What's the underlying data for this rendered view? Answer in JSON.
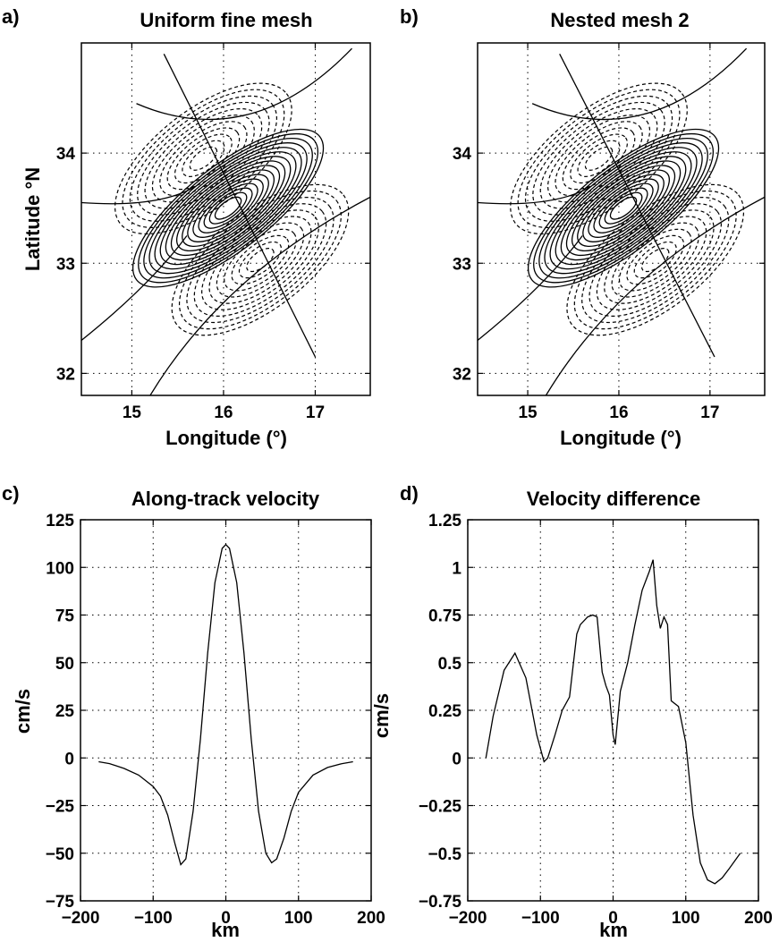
{
  "colors": {
    "line": "#000000",
    "background": "#ffffff"
  },
  "chart_data": [
    {
      "panel": "a)",
      "type": "contour",
      "title": "Uniform fine mesh",
      "xlabel": "Longitude (°)",
      "ylabel": "Latitude °N",
      "xlim": [
        14.45,
        17.6
      ],
      "ylim": [
        31.8,
        35.0
      ],
      "xticks": [
        15,
        16,
        17
      ],
      "yticks": [
        32,
        33,
        34
      ],
      "xtick_labels": [
        "15",
        "16",
        "17"
      ],
      "ytick_labels": [
        "32",
        "33",
        "34"
      ],
      "grid": true,
      "center": [
        16.05,
        33.5
      ],
      "track": [
        [
          15.35,
          34.9
        ],
        [
          17.0,
          32.15
        ]
      ],
      "solid_levels": 16,
      "dashed_levels": 11,
      "lobes": [
        [
          15.78,
          33.95
        ],
        [
          16.4,
          33.03
        ]
      ]
    },
    {
      "panel": "b)",
      "type": "contour",
      "title": "Nested mesh 2",
      "xlabel": "Longitude (°)",
      "ylabel": "",
      "xlim": [
        14.45,
        17.6
      ],
      "ylim": [
        31.8,
        35.0
      ],
      "xticks": [
        15,
        16,
        17
      ],
      "yticks": [
        32,
        33,
        34
      ],
      "xtick_labels": [
        "15",
        "16",
        "17"
      ],
      "ytick_labels": [
        "32",
        "33",
        "34"
      ],
      "grid": true,
      "center": [
        16.05,
        33.5
      ],
      "track": [
        [
          15.35,
          34.9
        ],
        [
          17.05,
          32.15
        ]
      ],
      "solid_levels": 16,
      "dashed_levels": 11,
      "lobes": [
        [
          15.78,
          33.95
        ],
        [
          16.4,
          33.03
        ]
      ]
    },
    {
      "panel": "c)",
      "type": "line",
      "title": "Along-track velocity",
      "xlabel": "km",
      "ylabel": "cm/s",
      "xlim": [
        -200,
        200
      ],
      "ylim": [
        -75,
        125
      ],
      "xticks": [
        -200,
        -100,
        0,
        100,
        200
      ],
      "yticks": [
        -75,
        -50,
        -25,
        0,
        25,
        50,
        75,
        100,
        125
      ],
      "xtick_labels": [
        "−200",
        "−100",
        "0",
        "100",
        "200"
      ],
      "ytick_labels": [
        "−75",
        "−50",
        "−25",
        "0",
        "25",
        "50",
        "75",
        "100",
        "125"
      ],
      "grid": true,
      "x": [
        -175,
        -160,
        -140,
        -120,
        -100,
        -90,
        -80,
        -70,
        -62,
        -55,
        -45,
        -35,
        -25,
        -15,
        -5,
        0,
        5,
        15,
        25,
        35,
        45,
        55,
        63,
        70,
        80,
        90,
        100,
        120,
        140,
        160,
        175
      ],
      "y": [
        -2,
        -3,
        -5.5,
        -9,
        -15,
        -20,
        -30,
        -45,
        -56,
        -53,
        -28,
        10,
        55,
        92,
        110,
        112,
        110,
        92,
        55,
        10,
        -28,
        -50,
        -55,
        -53,
        -42,
        -28,
        -18,
        -9,
        -5,
        -3,
        -2
      ]
    },
    {
      "panel": "d)",
      "type": "line",
      "title": "Velocity difference",
      "xlabel": "km",
      "ylabel": "cm/s",
      "xlim": [
        -200,
        200
      ],
      "ylim": [
        -0.75,
        1.25
      ],
      "xticks": [
        -200,
        -100,
        0,
        100,
        200
      ],
      "yticks": [
        -0.75,
        -0.5,
        -0.25,
        0,
        0.25,
        0.5,
        0.75,
        1,
        1.25
      ],
      "xtick_labels": [
        "−200",
        "−100",
        "0",
        "100",
        "200"
      ],
      "ytick_labels": [
        "−0.75",
        "−0.5",
        "−0.25",
        "0",
        "0.25",
        "0.5",
        "0.75",
        "1",
        "1.25"
      ],
      "grid": true,
      "x": [
        -175,
        -165,
        -150,
        -135,
        -120,
        -105,
        -95,
        -90,
        -80,
        -70,
        -60,
        -50,
        -45,
        -35,
        -28,
        -22,
        -15,
        -10,
        -5,
        0,
        3,
        10,
        20,
        30,
        40,
        50,
        55,
        60,
        65,
        70,
        75,
        80,
        90,
        100,
        110,
        120,
        130,
        140,
        150,
        160,
        175
      ],
      "y": [
        0.0,
        0.22,
        0.46,
        0.55,
        0.42,
        0.12,
        -0.02,
        0.0,
        0.12,
        0.25,
        0.32,
        0.65,
        0.7,
        0.74,
        0.75,
        0.74,
        0.45,
        0.38,
        0.33,
        0.12,
        0.07,
        0.35,
        0.5,
        0.7,
        0.88,
        0.98,
        1.04,
        0.8,
        0.68,
        0.74,
        0.7,
        0.3,
        0.27,
        0.08,
        -0.3,
        -0.55,
        -0.64,
        -0.66,
        -0.63,
        -0.58,
        -0.5
      ]
    }
  ]
}
